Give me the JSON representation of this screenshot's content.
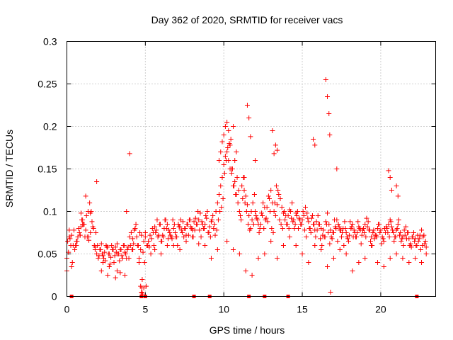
{
  "chart_data": {
    "type": "scatter",
    "title": "Day 362 of 2020, SRMTID for receiver vacs",
    "xlabel": "GPS time / hours",
    "ylabel": "SRMTID / TECUs",
    "xlim": [
      0,
      23.5
    ],
    "ylim": [
      0,
      0.3
    ],
    "x_ticks": [
      0,
      5,
      10,
      15,
      20
    ],
    "x_tick_labels": [
      "0",
      "5",
      "10",
      "15",
      "20"
    ],
    "y_ticks": [
      0,
      0.05,
      0.1,
      0.15,
      0.2,
      0.25,
      0.3
    ],
    "y_tick_labels": [
      "0",
      "0.05",
      "0.1",
      "0.15",
      "0.2",
      "0.25",
      "0.3"
    ],
    "grid": true,
    "series": [
      {
        "name": "SRMTID",
        "marker": "plus",
        "color": "#ff0000",
        "x": [
          0.0,
          0.1,
          0.2,
          0.3,
          0.4,
          0.5,
          0.6,
          0.7,
          0.8,
          0.9,
          1.0,
          1.1,
          1.2,
          1.3,
          1.4,
          1.5,
          1.6,
          1.7,
          1.8,
          1.9,
          2.0,
          2.1,
          2.2,
          2.3,
          2.4,
          2.5,
          2.6,
          2.7,
          2.8,
          2.9,
          3.0,
          3.1,
          3.2,
          3.3,
          3.4,
          3.5,
          3.6,
          3.7,
          3.8,
          3.9,
          4.0,
          4.1,
          4.2,
          4.3,
          4.4,
          4.5,
          4.6,
          4.7,
          4.8,
          4.9,
          5.0,
          5.1,
          5.2,
          5.3,
          5.4,
          5.5,
          5.6,
          5.7,
          5.8,
          5.9,
          6.0,
          6.1,
          6.2,
          6.3,
          6.4,
          6.5,
          6.6,
          6.7,
          6.8,
          6.9,
          7.0,
          7.1,
          7.2,
          7.3,
          7.4,
          7.5,
          7.6,
          7.7,
          7.8,
          7.9,
          8.0,
          8.1,
          8.2,
          8.3,
          8.4,
          8.5,
          8.6,
          8.7,
          8.8,
          8.9,
          9.0,
          9.1,
          9.2,
          9.3,
          9.4,
          9.5,
          9.6,
          9.7,
          9.8,
          9.9,
          10.0,
          10.1,
          10.2,
          10.3,
          10.4,
          10.5,
          10.6,
          10.7,
          10.8,
          10.9,
          11.0,
          11.1,
          11.2,
          11.3,
          11.4,
          11.5,
          11.6,
          11.7,
          11.8,
          11.9,
          12.0,
          12.1,
          12.2,
          12.3,
          12.4,
          12.5,
          12.6,
          12.7,
          12.8,
          12.9,
          13.0,
          13.1,
          13.2,
          13.3,
          13.4,
          13.5,
          13.6,
          13.7,
          13.8,
          13.9,
          14.0,
          14.1,
          14.2,
          14.3,
          14.4,
          14.5,
          14.6,
          14.7,
          14.8,
          14.9,
          15.0,
          15.1,
          15.2,
          15.3,
          15.4,
          15.5,
          15.6,
          15.7,
          15.8,
          15.9,
          16.0,
          16.1,
          16.2,
          16.3,
          16.4,
          16.5,
          16.6,
          16.7,
          16.8,
          16.9,
          17.0,
          17.1,
          17.2,
          17.3,
          17.4,
          17.5,
          17.6,
          17.7,
          17.8,
          17.9,
          18.0,
          18.1,
          18.2,
          18.3,
          18.4,
          18.5,
          18.6,
          18.7,
          18.8,
          18.9,
          19.0,
          19.1,
          19.2,
          19.3,
          19.4,
          19.5,
          19.6,
          19.7,
          19.8,
          19.9,
          20.0,
          20.1,
          20.2,
          20.3,
          20.4,
          20.5,
          20.6,
          20.7,
          20.8,
          20.9,
          21.0,
          21.1,
          21.2,
          21.3,
          21.4,
          21.5,
          21.6,
          21.7,
          21.8,
          21.9,
          22.0,
          22.1,
          22.2,
          22.3,
          22.4,
          22.5,
          22.6,
          22.7,
          22.8,
          22.9,
          0.05,
          0.15,
          0.25,
          0.35,
          0.45,
          0.55,
          0.65,
          0.75,
          0.85,
          0.95,
          1.05,
          1.15,
          1.25,
          1.35,
          1.45,
          1.55,
          1.65,
          1.75,
          1.85,
          1.95,
          2.05,
          2.15,
          2.25,
          2.35,
          2.45,
          2.55,
          2.65,
          2.75,
          2.85,
          2.95,
          3.05,
          3.15,
          3.25,
          3.35,
          3.45,
          3.55,
          3.65,
          3.75,
          3.85,
          3.95,
          4.05,
          4.15,
          4.25,
          4.35,
          4.45,
          4.55,
          4.65,
          4.75,
          4.85,
          4.95,
          5.05,
          5.15,
          5.25,
          5.35,
          5.45,
          5.55,
          5.65,
          5.75,
          5.85,
          5.95,
          6.05,
          6.15,
          6.25,
          6.35,
          6.45,
          6.55,
          6.65,
          6.75,
          6.85,
          6.95,
          7.05,
          7.15,
          7.25,
          7.35,
          7.45,
          7.55,
          7.65,
          7.75,
          7.85,
          7.95,
          8.05,
          8.15,
          8.25,
          8.35,
          8.45,
          8.55,
          8.65,
          8.75,
          8.85,
          8.95,
          9.05,
          9.15,
          9.25,
          9.35,
          9.45,
          9.55,
          9.65,
          9.75,
          9.85,
          9.95,
          10.05,
          10.15,
          10.25,
          10.35,
          10.45,
          10.55,
          10.65,
          10.75,
          10.85,
          10.95,
          11.05,
          11.15,
          11.25,
          11.35,
          11.45,
          11.55,
          11.65,
          11.75,
          11.85,
          11.95,
          12.05,
          12.15,
          12.25,
          12.35,
          12.45,
          12.55,
          12.65,
          12.75,
          12.85,
          12.95,
          13.05,
          13.15,
          13.25,
          13.35,
          13.45,
          13.55,
          13.65,
          13.75,
          13.85,
          13.95,
          14.05,
          14.15,
          14.25,
          14.35,
          14.45,
          14.55,
          14.65,
          14.75,
          14.85,
          14.95,
          15.05,
          15.15,
          15.25,
          15.35,
          15.45,
          15.55,
          15.65,
          15.75,
          15.85,
          15.95,
          16.05,
          16.15,
          16.25,
          16.35,
          16.45,
          16.55,
          16.65,
          16.75,
          16.85,
          16.95,
          17.05,
          17.15,
          17.25,
          17.35,
          17.45,
          17.55,
          17.65,
          17.75,
          17.85,
          17.95,
          18.05,
          18.15,
          18.25,
          18.35,
          18.45,
          18.55,
          18.65,
          18.75,
          18.85,
          18.95,
          19.05,
          19.15,
          19.25,
          19.35,
          19.45,
          19.55,
          19.65,
          19.75,
          19.85,
          19.95,
          20.05,
          20.15,
          20.25,
          20.35,
          20.45,
          20.55,
          20.65,
          20.75,
          20.85,
          20.95,
          21.05,
          21.15,
          21.25,
          21.35,
          21.45,
          21.55,
          21.65,
          21.75,
          21.85,
          21.95,
          22.05,
          22.15,
          22.25,
          22.35,
          22.45,
          22.55,
          22.65,
          22.75,
          22.85,
          0.15,
          0.9,
          1.2,
          1.5,
          1.9,
          2.2,
          2.6,
          3.1,
          3.4,
          3.8,
          4.0,
          4.7,
          4.75,
          4.8,
          4.9,
          5.0,
          9.7,
          9.8,
          9.9,
          10.0,
          10.1,
          10.2,
          10.3,
          10.4,
          10.5,
          10.6,
          10.7,
          10.8,
          11.3,
          11.5,
          11.6,
          11.7,
          12.0,
          13.1,
          13.2,
          13.3,
          13.4,
          15.7,
          15.8,
          16.5,
          16.6,
          16.7,
          16.75,
          16.8,
          17.2,
          20.5,
          20.6,
          20.7,
          21.0,
          21.1,
          0.0,
          0.3,
          0.6,
          1.0,
          1.4,
          1.8,
          2.3,
          2.7,
          3.2,
          3.7,
          4.2,
          4.6,
          4.78,
          4.82,
          5.2,
          5.6,
          6.0,
          6.4,
          6.8,
          7.2,
          7.6,
          8.0,
          8.4,
          8.8,
          9.2,
          9.6,
          10.2,
          10.6,
          11.0,
          11.4,
          11.8,
          12.2,
          12.6,
          13.0,
          13.4,
          13.8,
          14.2,
          14.6,
          15.0,
          15.4,
          15.8,
          16.2,
          16.6,
          17.0,
          17.4,
          17.8,
          18.2,
          18.6,
          19.0,
          19.4,
          19.8,
          20.2,
          20.6,
          21.0,
          21.4,
          21.8,
          22.2,
          22.6,
          22.9
        ],
        "y": [
          0.045,
          0.052,
          0.068,
          0.072,
          0.06,
          0.055,
          0.065,
          0.07,
          0.075,
          0.082,
          0.09,
          0.085,
          0.078,
          0.07,
          0.066,
          0.075,
          0.088,
          0.08,
          0.058,
          0.05,
          0.045,
          0.055,
          0.062,
          0.048,
          0.052,
          0.06,
          0.058,
          0.05,
          0.046,
          0.055,
          0.04,
          0.058,
          0.062,
          0.05,
          0.055,
          0.048,
          0.06,
          0.052,
          0.045,
          0.058,
          0.07,
          0.075,
          0.068,
          0.078,
          0.085,
          0.06,
          0.04,
          0.055,
          0.02,
          0.065,
          0.07,
          0.06,
          0.065,
          0.072,
          0.068,
          0.075,
          0.082,
          0.078,
          0.07,
          0.085,
          0.065,
          0.072,
          0.08,
          0.09,
          0.085,
          0.078,
          0.072,
          0.068,
          0.08,
          0.075,
          0.07,
          0.085,
          0.082,
          0.078,
          0.088,
          0.08,
          0.072,
          0.085,
          0.09,
          0.082,
          0.078,
          0.088,
          0.092,
          0.085,
          0.09,
          0.098,
          0.088,
          0.08,
          0.085,
          0.092,
          0.075,
          0.082,
          0.088,
          0.095,
          0.085,
          0.1,
          0.11,
          0.12,
          0.13,
          0.14,
          0.155,
          0.165,
          0.17,
          0.16,
          0.15,
          0.145,
          0.13,
          0.135,
          0.12,
          0.11,
          0.1,
          0.09,
          0.115,
          0.125,
          0.118,
          0.108,
          0.095,
          0.08,
          0.09,
          0.085,
          0.1,
          0.092,
          0.085,
          0.08,
          0.098,
          0.11,
          0.105,
          0.092,
          0.088,
          0.115,
          0.125,
          0.11,
          0.1,
          0.095,
          0.108,
          0.12,
          0.115,
          0.105,
          0.098,
          0.09,
          0.085,
          0.095,
          0.102,
          0.092,
          0.088,
          0.08,
          0.098,
          0.1,
          0.092,
          0.085,
          0.09,
          0.095,
          0.105,
          0.098,
          0.088,
          0.08,
          0.092,
          0.085,
          0.078,
          0.088,
          0.095,
          0.085,
          0.08,
          0.072,
          0.07,
          0.088,
          0.098,
          0.085,
          0.078,
          0.068,
          0.075,
          0.082,
          0.09,
          0.085,
          0.078,
          0.07,
          0.08,
          0.088,
          0.075,
          0.068,
          0.072,
          0.08,
          0.085,
          0.078,
          0.07,
          0.075,
          0.082,
          0.078,
          0.072,
          0.08,
          0.085,
          0.092,
          0.088,
          0.078,
          0.07,
          0.075,
          0.068,
          0.072,
          0.08,
          0.085,
          0.078,
          0.07,
          0.065,
          0.075,
          0.08,
          0.085,
          0.09,
          0.082,
          0.075,
          0.07,
          0.078,
          0.085,
          0.072,
          0.065,
          0.07,
          0.078,
          0.082,
          0.075,
          0.068,
          0.062,
          0.07,
          0.075,
          0.068,
          0.06,
          0.065,
          0.072,
          0.078,
          0.07,
          0.062,
          0.058,
          0.065,
          0.07,
          0.06,
          0.04,
          0.078,
          0.06,
          0.065,
          0.08,
          0.072,
          0.09,
          0.085,
          0.07,
          0.095,
          0.1,
          0.11,
          0.1,
          0.082,
          0.06,
          0.075,
          0.06,
          0.048,
          0.055,
          0.05,
          0.045,
          0.042,
          0.058,
          0.05,
          0.038,
          0.06,
          0.055,
          0.048,
          0.052,
          0.05,
          0.042,
          0.055,
          0.045,
          0.06,
          0.05,
          0.055,
          0.045,
          0.06,
          0.055,
          0.062,
          0.08,
          0.07,
          0.06,
          0.075,
          0.072,
          0.052,
          0.04,
          0.012,
          0.06,
          0.058,
          0.05,
          0.08,
          0.06,
          0.075,
          0.09,
          0.072,
          0.085,
          0.065,
          0.07,
          0.09,
          0.08,
          0.068,
          0.075,
          0.07,
          0.09,
          0.085,
          0.07,
          0.06,
          0.082,
          0.09,
          0.075,
          0.07,
          0.08,
          0.085,
          0.072,
          0.09,
          0.08,
          0.07,
          0.078,
          0.085,
          0.1,
          0.078,
          0.07,
          0.085,
          0.08,
          0.095,
          0.1,
          0.075,
          0.07,
          0.09,
          0.08,
          0.072,
          0.078,
          0.09,
          0.1,
          0.105,
          0.115,
          0.145,
          0.16,
          0.175,
          0.18,
          0.185,
          0.15,
          0.13,
          0.12,
          0.14,
          0.125,
          0.095,
          0.13,
          0.14,
          0.11,
          0.1,
          0.085,
          0.078,
          0.1,
          0.11,
          0.12,
          0.095,
          0.09,
          0.075,
          0.085,
          0.095,
          0.08,
          0.09,
          0.105,
          0.118,
          0.1,
          0.08,
          0.075,
          0.11,
          0.13,
          0.125,
          0.09,
          0.085,
          0.08,
          0.1,
          0.095,
          0.085,
          0.08,
          0.1,
          0.11,
          0.09,
          0.085,
          0.095,
          0.08,
          0.09,
          0.085,
          0.1,
          0.078,
          0.07,
          0.092,
          0.08,
          0.075,
          0.095,
          0.085,
          0.07,
          0.078,
          0.085,
          0.068,
          0.06,
          0.078,
          0.07,
          0.085,
          0.075,
          0.062,
          0.07,
          0.075,
          0.09,
          0.08,
          0.065,
          0.082,
          0.078,
          0.075,
          0.06,
          0.08,
          0.07,
          0.065,
          0.088,
          0.082,
          0.07,
          0.075,
          0.07,
          0.088,
          0.08,
          0.062,
          0.078,
          0.075,
          0.07,
          0.082,
          0.078,
          0.065,
          0.06,
          0.078,
          0.072,
          0.07,
          0.085,
          0.075,
          0.062,
          0.068,
          0.08,
          0.082,
          0.075,
          0.07,
          0.088,
          0.078,
          0.065,
          0.07,
          0.08,
          0.09,
          0.075,
          0.068,
          0.06,
          0.072,
          0.068,
          0.075,
          0.06,
          0.058,
          0.07,
          0.065,
          0.06,
          0.072,
          0.068,
          0.055,
          0.06,
          0.072,
          0.065,
          0.078,
          0.098,
          0.118,
          0.098,
          0.135,
          0.03,
          0.025,
          0.022,
          0.028,
          0.1,
          0.168,
          0.012,
          0.005,
          0.004,
          0.01,
          0.075,
          0.16,
          0.17,
          0.182,
          0.19,
          0.2,
          0.205,
          0.195,
          0.178,
          0.15,
          0.2,
          0.16,
          0.17,
          0.14,
          0.225,
          0.21,
          0.188,
          0.16,
          0.195,
          0.168,
          0.178,
          0.172,
          0.185,
          0.178,
          0.255,
          0.235,
          0.215,
          0.19,
          0.005,
          0.15,
          0.148,
          0.14,
          0.125,
          0.13,
          0.118,
          0.03,
          0.035,
          0.06,
          0.085,
          0.07,
          0.055,
          0.04,
          0.035,
          0.03,
          0.025,
          0.055,
          0.045,
          0.01,
          0.002,
          0.065,
          0.055,
          0.05,
          0.06,
          0.06,
          0.055,
          0.065,
          0.07,
          0.062,
          0.06,
          0.045,
          0.055,
          0.065,
          0.055,
          0.05,
          0.03,
          0.025,
          0.045,
          0.05,
          0.065,
          0.045,
          0.06,
          0.07,
          0.06,
          0.05,
          0.04,
          0.06,
          0.055,
          0.035,
          0.045,
          0.055,
          0.05,
          0.03,
          0.04,
          0.045,
          0.06,
          0.04,
          0.035,
          0.045,
          0.05,
          0.045,
          0.04,
          0.045,
          0.04,
          0.05
        ]
      }
    ],
    "x_markers": [
      0.3,
      4.75,
      5.0,
      8.1,
      9.1,
      11.6,
      12.6,
      14.1,
      22.3
    ],
    "x_markers_y": 0
  }
}
